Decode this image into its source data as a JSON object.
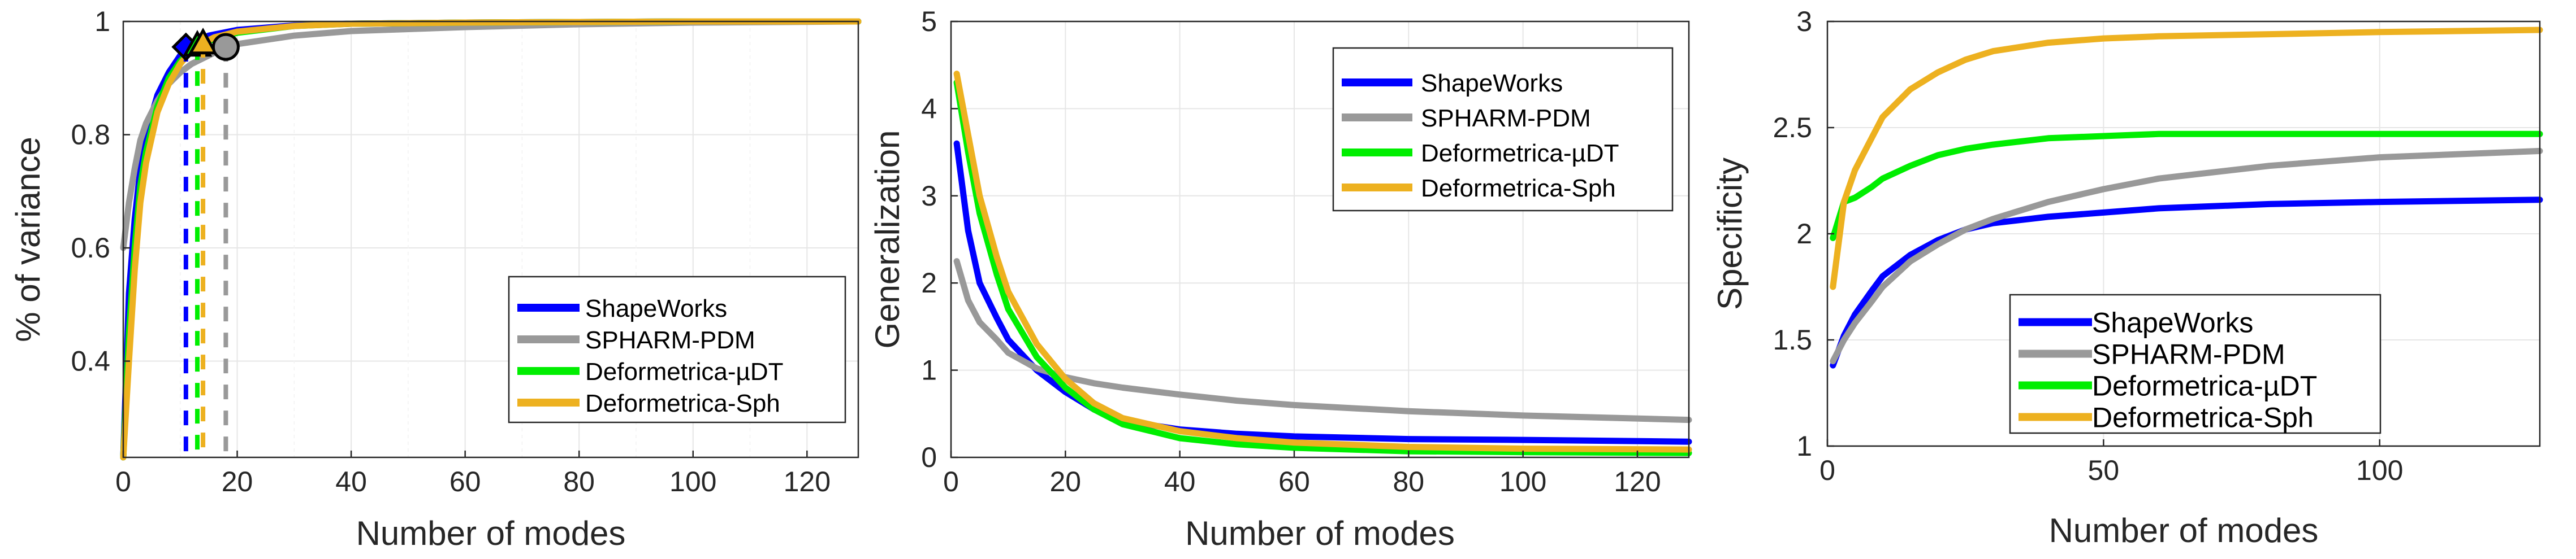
{
  "chart_data": [
    {
      "type": "line",
      "id": "variance",
      "xlabel": "Number of modes",
      "ylabel": "% of variance",
      "xlim": [
        0,
        129
      ],
      "ylim": [
        0.23,
        1.0
      ],
      "xticks": [
        0,
        20,
        40,
        60,
        80,
        100,
        120
      ],
      "yticks": [
        0.4,
        0.6,
        0.8,
        1
      ],
      "ytick_labels": [
        "0.4",
        "0.6",
        "0.8",
        "1"
      ],
      "legend_position": "bottom-right",
      "series": [
        {
          "name": "ShapeWorks",
          "color": "#0000ff",
          "x": [
            0,
            1,
            2,
            3,
            4,
            6,
            8,
            10,
            12,
            15,
            20,
            30,
            40,
            60,
            80,
            100,
            129
          ],
          "values": [
            0.23,
            0.52,
            0.65,
            0.74,
            0.8,
            0.87,
            0.91,
            0.94,
            0.96,
            0.975,
            0.985,
            0.993,
            0.996,
            0.998,
            0.999,
            1.0,
            1.0
          ]
        },
        {
          "name": "SPHARM-PDM",
          "color": "#999999",
          "x": [
            0,
            1,
            2,
            3,
            4,
            6,
            8,
            10,
            12,
            15,
            18,
            20,
            30,
            40,
            60,
            80,
            100,
            129
          ],
          "values": [
            0.6,
            0.68,
            0.74,
            0.79,
            0.82,
            0.86,
            0.89,
            0.91,
            0.925,
            0.94,
            0.955,
            0.96,
            0.975,
            0.983,
            0.99,
            0.995,
            0.998,
            1.0
          ]
        },
        {
          "name": "Deformetrica-µDT",
          "color": "#00ee00",
          "x": [
            0,
            1,
            2,
            3,
            4,
            6,
            8,
            10,
            12,
            14,
            16,
            20,
            30,
            40,
            60,
            80,
            100,
            129
          ],
          "values": [
            0.23,
            0.45,
            0.6,
            0.71,
            0.77,
            0.85,
            0.9,
            0.93,
            0.95,
            0.96,
            0.97,
            0.98,
            0.992,
            0.996,
            0.998,
            0.999,
            1.0,
            1.0
          ]
        },
        {
          "name": "Deformetrica-Sph",
          "color": "#edb120",
          "x": [
            0,
            1,
            2,
            3,
            4,
            6,
            8,
            10,
            12,
            14,
            16,
            20,
            30,
            40,
            60,
            80,
            100,
            129
          ],
          "values": [
            0.23,
            0.4,
            0.56,
            0.68,
            0.75,
            0.84,
            0.89,
            0.925,
            0.95,
            0.962,
            0.972,
            0.982,
            0.992,
            0.996,
            0.998,
            0.999,
            1.0,
            1.0
          ]
        }
      ],
      "markers": [
        {
          "series": "ShapeWorks",
          "x": 11,
          "y": 0.955,
          "shape": "diamond",
          "fill": "#0000ff"
        },
        {
          "series": "Deformetrica-µDT",
          "x": 13,
          "y": 0.958,
          "shape": "triangle",
          "fill": "#00ee00"
        },
        {
          "series": "Deformetrica-Sph",
          "x": 14,
          "y": 0.962,
          "shape": "triangle",
          "fill": "#edb120"
        },
        {
          "series": "SPHARM-PDM",
          "x": 18,
          "y": 0.955,
          "shape": "circle",
          "fill": "#999999"
        }
      ]
    },
    {
      "type": "line",
      "id": "generalization",
      "xlabel": "Number of modes",
      "ylabel": "Generalization",
      "xlim": [
        0,
        129
      ],
      "ylim": [
        0,
        5
      ],
      "xticks": [
        0,
        20,
        40,
        60,
        80,
        100,
        120
      ],
      "yticks": [
        0,
        1,
        2,
        3,
        4,
        5
      ],
      "ytick_labels": [
        "0",
        "1",
        "2",
        "3",
        "4",
        "5"
      ],
      "legend_position": "top-right",
      "series": [
        {
          "name": "ShapeWorks",
          "color": "#0000ff",
          "x": [
            1,
            3,
            5,
            8,
            10,
            15,
            20,
            25,
            30,
            40,
            50,
            60,
            80,
            100,
            129
          ],
          "values": [
            3.6,
            2.6,
            2.0,
            1.6,
            1.35,
            1.0,
            0.75,
            0.55,
            0.42,
            0.32,
            0.27,
            0.24,
            0.21,
            0.2,
            0.18
          ]
        },
        {
          "name": "SPHARM-PDM",
          "color": "#999999",
          "x": [
            1,
            3,
            5,
            8,
            10,
            15,
            20,
            25,
            30,
            40,
            50,
            60,
            80,
            100,
            129
          ],
          "values": [
            2.25,
            1.8,
            1.55,
            1.35,
            1.2,
            1.02,
            0.92,
            0.85,
            0.8,
            0.72,
            0.65,
            0.6,
            0.53,
            0.48,
            0.43
          ]
        },
        {
          "name": "Deformetrica-µDT",
          "color": "#00ee00",
          "x": [
            1,
            3,
            5,
            8,
            10,
            15,
            20,
            25,
            30,
            40,
            50,
            60,
            80,
            100,
            129
          ],
          "values": [
            4.3,
            3.5,
            2.8,
            2.1,
            1.7,
            1.15,
            0.8,
            0.55,
            0.38,
            0.22,
            0.15,
            0.11,
            0.07,
            0.06,
            0.05
          ]
        },
        {
          "name": "Deformetrica-Sph",
          "color": "#edb120",
          "x": [
            1,
            3,
            5,
            8,
            10,
            15,
            20,
            25,
            30,
            40,
            50,
            60,
            80,
            100,
            129
          ],
          "values": [
            4.4,
            3.7,
            3.0,
            2.3,
            1.9,
            1.3,
            0.9,
            0.62,
            0.45,
            0.3,
            0.22,
            0.17,
            0.12,
            0.1,
            0.09
          ]
        }
      ]
    },
    {
      "type": "line",
      "id": "specificity",
      "xlabel": "Number of modes",
      "ylabel": "Specificity",
      "xlim": [
        0,
        129
      ],
      "ylim": [
        1,
        3
      ],
      "xticks": [
        0,
        50,
        100
      ],
      "yticks": [
        1,
        1.5,
        2,
        2.5,
        3
      ],
      "ytick_labels": [
        "1",
        "1.5",
        "2",
        "2.5",
        "3"
      ],
      "legend_position": "bottom-center",
      "series": [
        {
          "name": "ShapeWorks",
          "color": "#0000ff",
          "x": [
            1,
            3,
            5,
            8,
            10,
            15,
            20,
            25,
            30,
            40,
            50,
            60,
            80,
            100,
            129
          ],
          "values": [
            1.38,
            1.52,
            1.62,
            1.73,
            1.8,
            1.9,
            1.97,
            2.02,
            2.05,
            2.08,
            2.1,
            2.12,
            2.14,
            2.15,
            2.16
          ]
        },
        {
          "name": "SPHARM-PDM",
          "color": "#999999",
          "x": [
            1,
            3,
            5,
            8,
            10,
            15,
            20,
            25,
            30,
            40,
            50,
            60,
            80,
            100,
            129
          ],
          "values": [
            1.4,
            1.5,
            1.58,
            1.68,
            1.75,
            1.87,
            1.95,
            2.02,
            2.07,
            2.15,
            2.21,
            2.26,
            2.32,
            2.36,
            2.39
          ]
        },
        {
          "name": "Deformetrica-µDT",
          "color": "#00ee00",
          "x": [
            1,
            3,
            5,
            8,
            10,
            15,
            20,
            25,
            30,
            40,
            50,
            60,
            80,
            100,
            129
          ],
          "values": [
            1.98,
            2.15,
            2.17,
            2.22,
            2.26,
            2.32,
            2.37,
            2.4,
            2.42,
            2.45,
            2.46,
            2.47,
            2.47,
            2.47,
            2.47
          ]
        },
        {
          "name": "Deformetrica-Sph",
          "color": "#edb120",
          "x": [
            1,
            3,
            5,
            8,
            10,
            15,
            20,
            25,
            30,
            40,
            50,
            60,
            80,
            100,
            129
          ],
          "values": [
            1.75,
            2.15,
            2.3,
            2.45,
            2.55,
            2.68,
            2.76,
            2.82,
            2.86,
            2.9,
            2.92,
            2.93,
            2.94,
            2.95,
            2.96
          ]
        }
      ]
    }
  ]
}
